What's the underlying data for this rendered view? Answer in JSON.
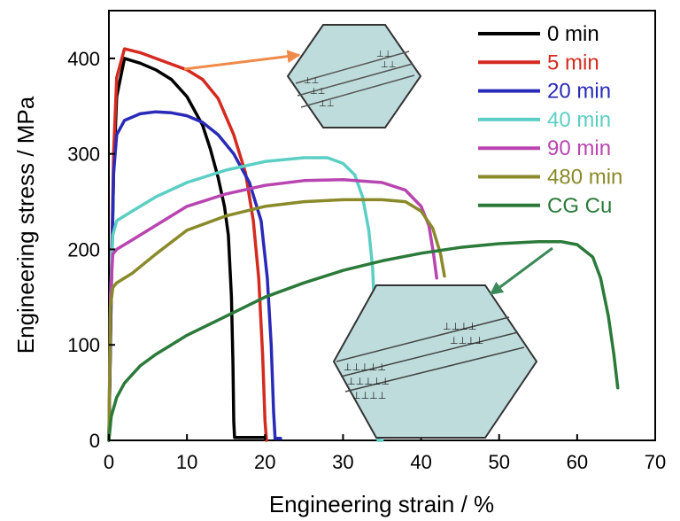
{
  "chart_data": {
    "type": "line",
    "xlabel": "Engineering strain / %",
    "ylabel": "Engineering stress / MPa",
    "xlim": [
      0,
      70
    ],
    "ylim": [
      0,
      450
    ],
    "xticks": [
      "0",
      "10",
      "20",
      "30",
      "40",
      "50",
      "60",
      "70"
    ],
    "yticks": [
      "0",
      "100",
      "200",
      "300",
      "400"
    ],
    "grid": false,
    "legend_position": "top-right",
    "series": [
      {
        "name": "0 min",
        "color": "#000000",
        "x": [
          0,
          0.3,
          0.6,
          1,
          2,
          4,
          6,
          8,
          10,
          12,
          13,
          14,
          14.8,
          15.3,
          15.7,
          15.9,
          16.0,
          16.1,
          20
        ],
        "y": [
          0,
          150,
          280,
          360,
          400,
          395,
          388,
          378,
          360,
          330,
          305,
          275,
          245,
          215,
          150,
          80,
          20,
          3,
          3
        ]
      },
      {
        "name": "5 min",
        "color": "#d42a20",
        "x": [
          0,
          0.3,
          0.6,
          1,
          2,
          4,
          6,
          8,
          10,
          12,
          14,
          16,
          17.5,
          18.5,
          19.2,
          19.7,
          20.0,
          20.2
        ],
        "y": [
          0,
          160,
          300,
          380,
          410,
          406,
          400,
          394,
          388,
          378,
          358,
          320,
          280,
          230,
          170,
          90,
          20,
          0
        ]
      },
      {
        "name": "20 min",
        "color": "#2a2ab8",
        "x": [
          0,
          0.3,
          0.6,
          1,
          2,
          4,
          6,
          8,
          10,
          12,
          14,
          16,
          18,
          19.5,
          20.3,
          20.8,
          21.1,
          21.3,
          22
        ],
        "y": [
          0,
          160,
          280,
          320,
          335,
          342,
          344,
          343,
          340,
          333,
          320,
          300,
          270,
          230,
          170,
          100,
          30,
          2,
          2
        ]
      },
      {
        "name": "40 min",
        "color": "#5ccfc4",
        "x": [
          0,
          0.2,
          0.5,
          1,
          3,
          6,
          10,
          15,
          20,
          25,
          28,
          30,
          31.5,
          32.5,
          33.3,
          33.8,
          34.1,
          34.5,
          35
        ],
        "y": [
          0,
          150,
          215,
          230,
          240,
          255,
          270,
          283,
          292,
          296,
          296,
          290,
          278,
          255,
          220,
          180,
          120,
          0,
          0
        ]
      },
      {
        "name": "90 min",
        "color": "#b845b0",
        "x": [
          0,
          0.2,
          0.5,
          1,
          3,
          6,
          10,
          15,
          20,
          25,
          30,
          35,
          38,
          40,
          41,
          41.6,
          42
        ],
        "y": [
          0,
          150,
          195,
          200,
          210,
          225,
          245,
          258,
          267,
          272,
          273,
          270,
          262,
          245,
          225,
          195,
          170
        ]
      },
      {
        "name": "480 min",
        "color": "#8a8a2a",
        "x": [
          0,
          0.2,
          0.5,
          1,
          3,
          6,
          10,
          15,
          20,
          25,
          30,
          35,
          38,
          40,
          41.5,
          42.5,
          43
        ],
        "y": [
          0,
          140,
          160,
          165,
          175,
          195,
          220,
          235,
          245,
          250,
          252,
          252,
          250,
          240,
          222,
          195,
          172
        ]
      },
      {
        "name": "CG Cu",
        "color": "#2b7a3a",
        "x": [
          0,
          0.3,
          1,
          2,
          4,
          6,
          8,
          10,
          15,
          20,
          25,
          30,
          35,
          40,
          45,
          50,
          55,
          58,
          60,
          62,
          63,
          64,
          64.7,
          65.2
        ],
        "y": [
          0,
          25,
          45,
          60,
          78,
          90,
          100,
          110,
          130,
          150,
          165,
          178,
          188,
          196,
          202,
          206,
          208,
          208,
          205,
          192,
          170,
          130,
          90,
          55
        ]
      }
    ],
    "annotations": [
      {
        "type": "inset",
        "description": "hexagonal grain with dislocations",
        "target_series": "5 min",
        "arrow_color": "#f08a4a"
      },
      {
        "type": "inset",
        "description": "hexagonal grain with dislocations",
        "target_series": "CG Cu",
        "arrow_color": "#3a8a5a"
      }
    ]
  }
}
